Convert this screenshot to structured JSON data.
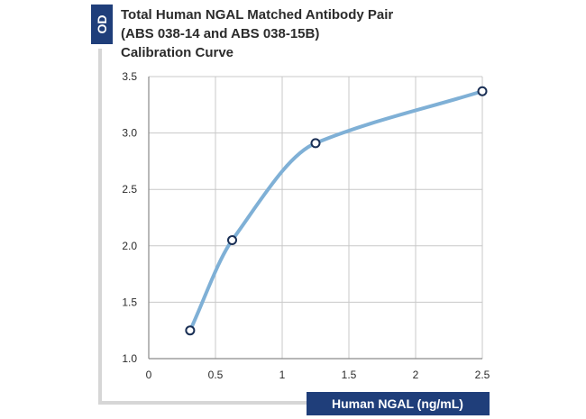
{
  "chart_data": {
    "type": "line",
    "title_lines": [
      "Total Human NGAL Matched Antibody Pair",
      "(ABS 038-14 and ABS 038-15B)",
      "Calibration Curve"
    ],
    "xlabel": "Human NGAL (ng/mL)",
    "ylabel": "OD",
    "xlim": [
      0,
      2.5
    ],
    "ylim": [
      1.0,
      3.5
    ],
    "x_ticks": [
      "0",
      "0.5",
      "1",
      "1.5",
      "2",
      "2.5"
    ],
    "y_ticks": [
      "1.0",
      "1.5",
      "2.0",
      "2.5",
      "3.0",
      "3.5"
    ],
    "grid": true,
    "series": [
      {
        "x": [
          0.31,
          0.625,
          1.25,
          2.5
        ],
        "y": [
          1.25,
          2.05,
          2.91,
          3.37
        ]
      }
    ],
    "colors": {
      "curve": "#7fb0d6",
      "marker_stroke": "#1a2f55",
      "badge": "#1f3e7a",
      "grid": "#c8c8c8",
      "frame": "#d6d6d6"
    }
  }
}
